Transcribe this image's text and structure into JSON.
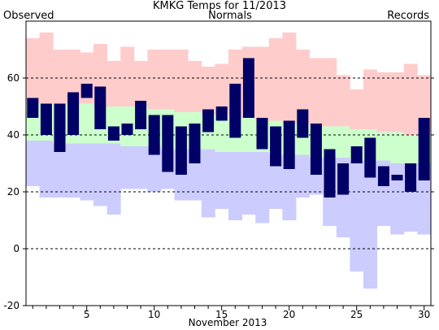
{
  "chart_data": {
    "type": "bar",
    "title": "KMKG Temps for 11/2013",
    "xlabel": "November 2013",
    "ylabel": "",
    "xlim": [
      0.5,
      30.5
    ],
    "ylim": [
      -20,
      80
    ],
    "y_gridlines_dashed": [
      60,
      40,
      20,
      0
    ],
    "x_ticks": [
      5,
      10,
      15,
      20,
      25,
      30
    ],
    "y_ticks": [
      60,
      40,
      20,
      0,
      -20
    ],
    "legend": [
      "Observed",
      "Normals",
      "Records"
    ],
    "colors": {
      "observed": "#000066",
      "normals": "#ccffcc",
      "record_high": "#ffcccc",
      "record_low": "#ccccff",
      "observed_label": "#000066",
      "normals_label": "#006600",
      "records_label": "#aa88dd"
    },
    "days": [
      1,
      2,
      3,
      4,
      5,
      6,
      7,
      8,
      9,
      10,
      11,
      12,
      13,
      14,
      15,
      16,
      17,
      18,
      19,
      20,
      21,
      22,
      23,
      24,
      25,
      26,
      27,
      28,
      29,
      30
    ],
    "record_high": [
      74,
      76,
      70,
      70,
      69,
      72,
      66,
      71,
      66,
      70,
      70,
      70,
      66,
      64,
      65,
      70,
      71,
      71,
      74,
      76,
      70,
      67,
      67,
      61,
      56,
      63,
      62,
      62,
      65,
      61
    ],
    "record_low": [
      22,
      18,
      18,
      18,
      17,
      15,
      12,
      21,
      21,
      20,
      21,
      17,
      17,
      11,
      14,
      10,
      12,
      9,
      14,
      10,
      18,
      19,
      8,
      4,
      -8,
      -14,
      8,
      5,
      6,
      5
    ],
    "normal_high": [
      51,
      51,
      51,
      51,
      51,
      50,
      50,
      50,
      50,
      49,
      49,
      48,
      48,
      47,
      47,
      46,
      46,
      45,
      45,
      44,
      44,
      43,
      43,
      43,
      42,
      42,
      41,
      41,
      40,
      40
    ],
    "normal_low": [
      38,
      38,
      37,
      37,
      37,
      37,
      37,
      36,
      36,
      36,
      35,
      35,
      35,
      35,
      34,
      34,
      34,
      34,
      33,
      33,
      33,
      32,
      32,
      32,
      31,
      31,
      31,
      30,
      30,
      30
    ],
    "observed_high": [
      53,
      51,
      51,
      55,
      58,
      57,
      43,
      44,
      52,
      47,
      47,
      43,
      44,
      49,
      50,
      58,
      67,
      46,
      43,
      45,
      49,
      44,
      35,
      30,
      36,
      39,
      29,
      26,
      30,
      46
    ],
    "observed_low": [
      46,
      40,
      34,
      40,
      53,
      42,
      38,
      40,
      42,
      33,
      27,
      26,
      30,
      41,
      45,
      39,
      46,
      35,
      29,
      28,
      39,
      26,
      18,
      19,
      30,
      25,
      22,
      24,
      20,
      24
    ]
  }
}
